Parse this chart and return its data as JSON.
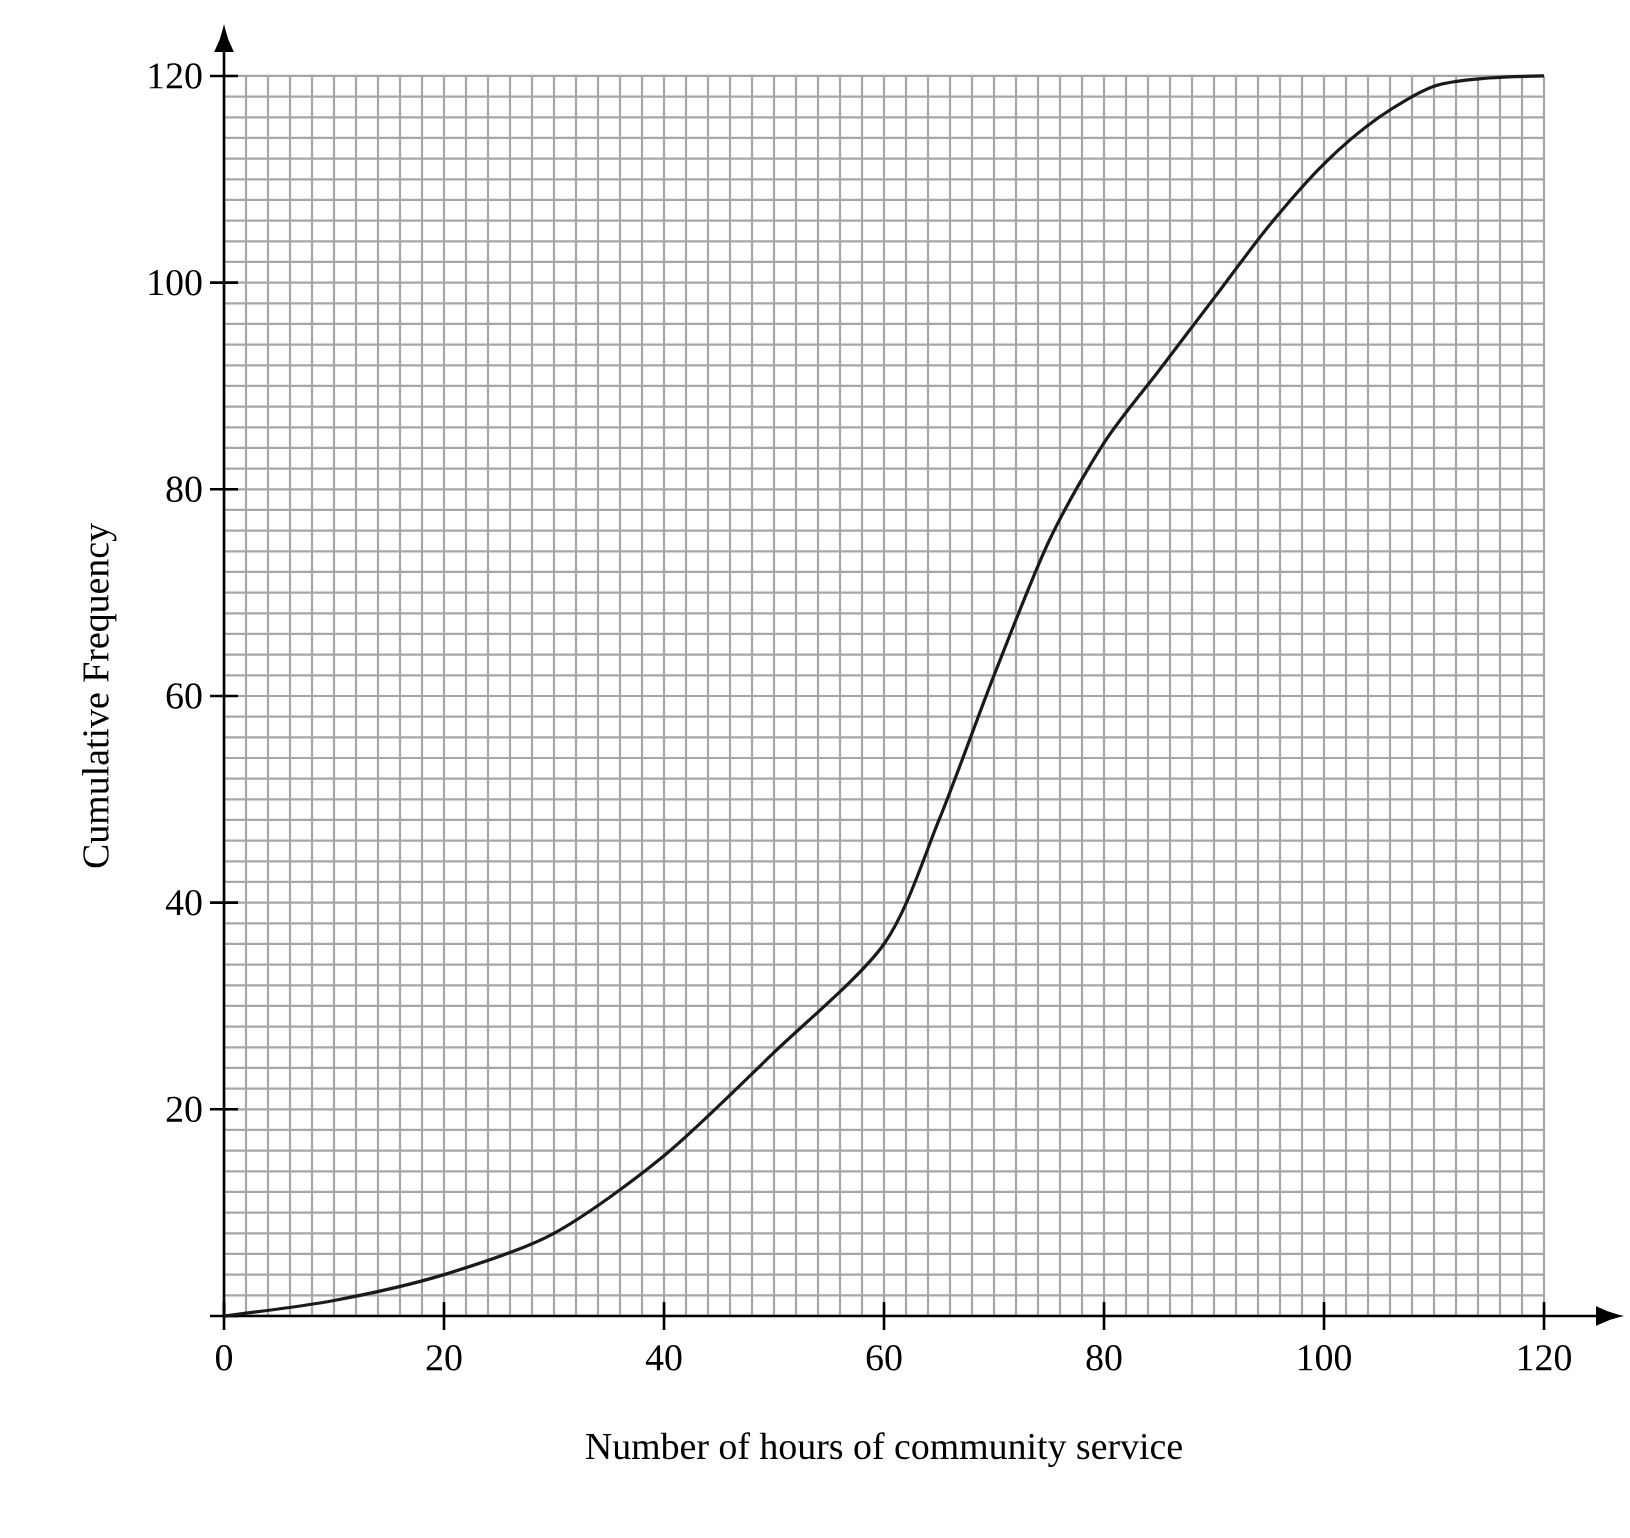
{
  "chart_data": {
    "type": "line",
    "xlabel": "Number of hours of community service",
    "ylabel": "Cumulative Frequency",
    "xlim": [
      0,
      120
    ],
    "ylim": [
      0,
      120
    ],
    "xticks": [
      0,
      20,
      40,
      60,
      80,
      100,
      120
    ],
    "yticks": [
      {
        "value": 0,
        "label": null
      },
      20,
      40,
      60,
      80,
      100,
      120
    ],
    "grid": true,
    "marker": "none",
    "line_style": "solid",
    "series": [
      {
        "color": "#1a1a1a",
        "x": [
          0,
          10,
          20,
          30,
          40,
          50,
          60,
          65,
          70,
          75,
          80,
          85,
          90,
          95,
          100,
          105,
          110,
          115,
          120
        ],
        "values": [
          0,
          1.5,
          4,
          8,
          15.5,
          25.5,
          36,
          48,
          62,
          75,
          84.5,
          91.5,
          98.5,
          105.5,
          111.5,
          116,
          119,
          119.8,
          120
        ]
      }
    ]
  }
}
